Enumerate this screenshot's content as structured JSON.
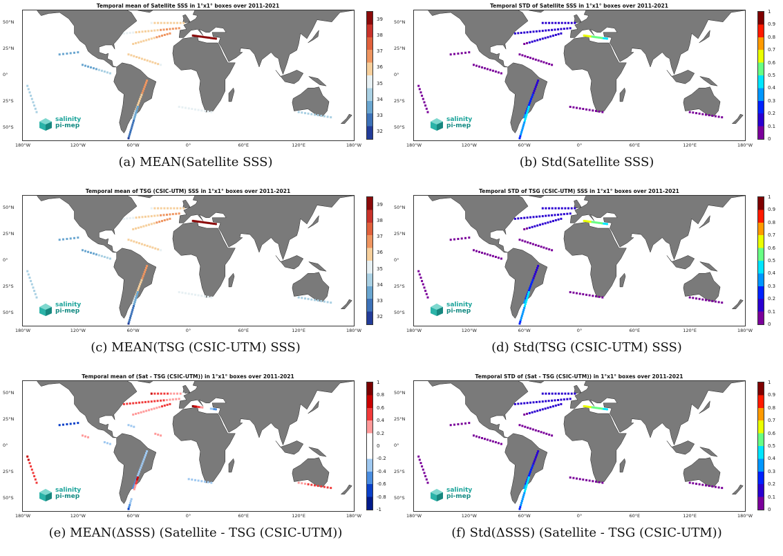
{
  "colors": {
    "land": "#7a7a7a",
    "ocean": "#ffffff",
    "logo": "#1aa39a"
  },
  "logo": {
    "line1": "salinity",
    "line2": "pi-mep",
    "icon": "cube-logo-icon"
  },
  "panels": [
    {
      "title": "Temporal mean of Satellite SSS in 1°x1° boxes over 2011-2021",
      "caption": "(a) MEAN(Satellite SSS)",
      "lat_labels": [
        "50°N",
        "25°N",
        "0°",
        "25°S",
        "50°S"
      ],
      "lon_labels": [
        "180°W",
        "120°W",
        "60°W",
        "0°",
        "60°E",
        "120°E",
        "180°W"
      ],
      "colorbar": {
        "scheme": "sss",
        "ticks": [
          "39",
          "38",
          "37",
          "36",
          "35",
          "34",
          "33",
          "32"
        ]
      }
    },
    {
      "title": "Temporal STD of Satellite SSS in 1°x1° boxes over 2011-2021",
      "caption": "(b) Std(Satellite SSS)",
      "lat_labels": [
        "50°N",
        "25°N",
        "0°",
        "25°S",
        "50°S"
      ],
      "lon_labels": [
        "180°W",
        "120°W",
        "60°W",
        "0°",
        "60°E",
        "120°E",
        "180°W"
      ],
      "colorbar": {
        "scheme": "jet",
        "ticks": [
          "1",
          "0.9",
          "0.8",
          "0.7",
          "0.6",
          "0.5",
          "0.4",
          "0.3",
          "0.2",
          "0.1",
          "0"
        ]
      }
    },
    {
      "title": "Temporal mean of TSG (CSIC-UTM) SSS in 1°x1° boxes over 2011-2021",
      "caption": "(c) MEAN(TSG (CSIC-UTM) SSS)",
      "lat_labels": [
        "50°N",
        "25°N",
        "0°",
        "25°S",
        "50°S"
      ],
      "lon_labels": [
        "180°W",
        "120°W",
        "60°W",
        "0°",
        "60°E",
        "120°E",
        "180°W"
      ],
      "colorbar": {
        "scheme": "sss",
        "ticks": [
          "39",
          "38",
          "37",
          "36",
          "35",
          "34",
          "33",
          "32"
        ]
      }
    },
    {
      "title": "Temporal STD of TSG (CSIC-UTM) SSS in 1°x1° boxes over 2011-2021",
      "caption": "(d) Std(TSG (CSIC-UTM) SSS)",
      "lat_labels": [
        "50°N",
        "25°N",
        "0°",
        "25°S",
        "50°S"
      ],
      "lon_labels": [
        "180°W",
        "120°W",
        "60°W",
        "0°",
        "60°E",
        "120°E",
        "180°W"
      ],
      "colorbar": {
        "scheme": "jet",
        "ticks": [
          "1",
          "0.9",
          "0.8",
          "0.7",
          "0.6",
          "0.5",
          "0.4",
          "0.3",
          "0.2",
          "0.1",
          "0"
        ]
      }
    },
    {
      "title": "Temporal mean of (Sat - TSG (CSIC-UTM)) in 1°x1° boxes over 2011-2021",
      "caption": "(e) MEAN(ΔSSS) (Satellite - TSG (CSIC-UTM))",
      "lat_labels": [
        "50°N",
        "25°N",
        "0°",
        "25°S",
        "50°S"
      ],
      "lon_labels": [
        "180°W",
        "120°W",
        "60°W",
        "0°",
        "60°E",
        "120°E",
        "180°W"
      ],
      "colorbar": {
        "scheme": "diverging",
        "ticks": [
          "1",
          "0.8",
          "0.6",
          "0.4",
          "0.2",
          "0",
          "-0.2",
          "-0.4",
          "-0.6",
          "-0.8",
          "-1"
        ]
      }
    },
    {
      "title": "Temporal STD of (Sat - TSG (CSIC-UTM)) in 1°x1° boxes over 2011-2021",
      "caption": "(f) Std(ΔSSS) (Satellite - TSG (CSIC-UTM))",
      "lat_labels": [
        "50°N",
        "25°N",
        "0°",
        "25°S",
        "50°S"
      ],
      "lon_labels": [
        "180°W",
        "120°W",
        "60°W",
        "0°",
        "60°E",
        "120°E",
        "180°W"
      ],
      "colorbar": {
        "scheme": "jet",
        "ticks": [
          "1",
          "0.9",
          "0.8",
          "0.7",
          "0.6",
          "0.5",
          "0.4",
          "0.3",
          "0.2",
          "0.1",
          "0"
        ]
      }
    }
  ]
}
